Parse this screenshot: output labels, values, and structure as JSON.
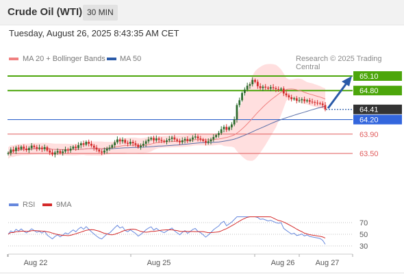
{
  "header": {
    "instrument": "Crude Oil (WTI)",
    "timeframe": "30 MIN"
  },
  "datetime": "Tuesday, August 26, 2025 8:43:35 AM CET",
  "copyright": "Research © 2025 Trading Central",
  "colors": {
    "resistance": "#4ca60b",
    "support": "#e05a5a",
    "pivot": "#3366cc",
    "price": "#333333",
    "ma20": "#f08080",
    "ma50": "#5a6fa8",
    "band": "#ffd2d2",
    "up_candle": "#2d6b2d",
    "down_candle": "#d42a2a",
    "rsi": "#6688dd",
    "rsi_ma": "#d42a2a",
    "arrow": "#2a5aa8"
  },
  "chart_data": [
    {
      "type": "candlestick",
      "title": "",
      "legend": [
        {
          "name": "MA 20 + Bollinger Bands",
          "color": "#f08080"
        },
        {
          "name": "MA 50",
          "color": "#2a5aa8"
        }
      ],
      "legend_placement": "top-left",
      "x_tick_labels": [
        "Aug 22",
        "Aug 25",
        "Aug 26",
        "Aug 27"
      ],
      "y_range": [
        63.2,
        65.2
      ],
      "last_price": 64.41,
      "levels": [
        {
          "value": 65.1,
          "label": "65.10",
          "kind": "resistance"
        },
        {
          "value": 64.8,
          "label": "64.80",
          "kind": "resistance"
        },
        {
          "value": 64.41,
          "label": "64.41",
          "kind": "price"
        },
        {
          "value": 64.2,
          "label": "64.20",
          "kind": "pivot"
        },
        {
          "value": 63.9,
          "label": "63.90",
          "kind": "support"
        },
        {
          "value": 63.5,
          "label": "63.50",
          "kind": "support"
        }
      ],
      "close": [
        63.51,
        63.58,
        63.55,
        63.62,
        63.59,
        63.64,
        63.6,
        63.57,
        63.61,
        63.66,
        63.63,
        63.6,
        63.62,
        63.59,
        63.63,
        63.56,
        63.52,
        63.48,
        63.52,
        63.55,
        63.51,
        63.54,
        63.58,
        63.56,
        63.6,
        63.64,
        63.61,
        63.67,
        63.71,
        63.68,
        63.74,
        63.7,
        63.66,
        63.62,
        63.58,
        63.54,
        63.52,
        63.56,
        63.6,
        63.62,
        63.67,
        63.73,
        63.79,
        63.75,
        63.78,
        63.72,
        63.7,
        63.74,
        63.71,
        63.68,
        63.63,
        63.66,
        63.7,
        63.75,
        63.79,
        63.82,
        63.77,
        63.81,
        63.78,
        63.76,
        63.74,
        63.77,
        63.8,
        63.83,
        63.79,
        63.76,
        63.73,
        63.77,
        63.8,
        63.76,
        63.79,
        63.83,
        63.85,
        63.81,
        63.79,
        63.76,
        63.72,
        63.75,
        63.79,
        63.84,
        63.88,
        63.92,
        64.0,
        64.05,
        63.99,
        64.04,
        64.1,
        64.2,
        64.5,
        64.6,
        64.75,
        64.82,
        64.9,
        64.93,
        65.02,
        64.98,
        64.89,
        64.85,
        64.88,
        64.86,
        64.84,
        64.87,
        64.85,
        64.83,
        64.82,
        64.84,
        64.74,
        64.7,
        64.66,
        64.62,
        64.64,
        64.59,
        64.6,
        64.62,
        64.58,
        64.6,
        64.57,
        64.56,
        64.55,
        64.54,
        64.53,
        64.5,
        64.41
      ]
    },
    {
      "type": "line",
      "title": "",
      "legend": [
        {
          "name": "RSI",
          "color": "#6688dd"
        },
        {
          "name": "9MA",
          "color": "#d42a2a"
        }
      ],
      "legend_placement": "top-left",
      "y_ticks": [
        70,
        50,
        30
      ],
      "y_range": [
        22,
        78
      ]
    }
  ]
}
